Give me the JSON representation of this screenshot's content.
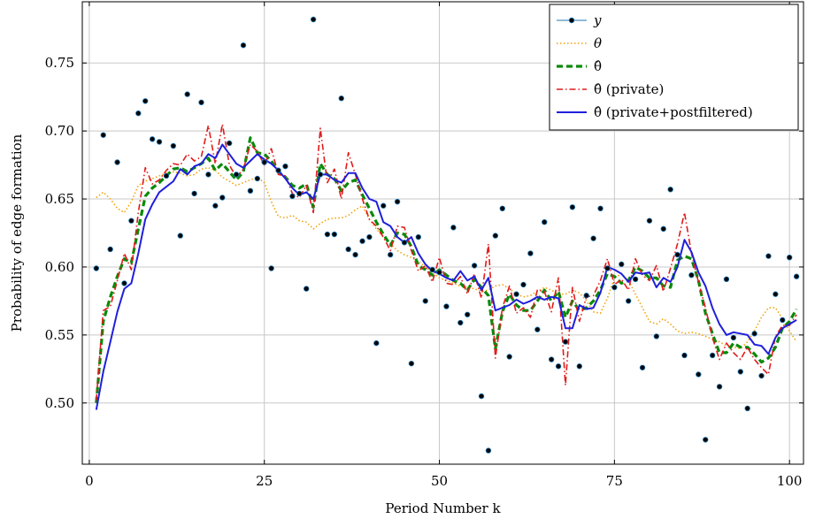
{
  "chart_data": {
    "type": "line",
    "title": "",
    "xlabel": "Period Number k",
    "ylabel": "Probability of edge formation",
    "xlim": [
      -1,
      102
    ],
    "ylim": [
      0.455,
      0.795
    ],
    "xticks": [
      0,
      25,
      50,
      75,
      100
    ],
    "yticks": [
      0.5,
      0.55,
      0.6,
      0.65,
      0.7,
      0.75
    ],
    "ytick_labels": [
      "0.50",
      "0.55",
      "0.60",
      "0.65",
      "0.70",
      "0.75"
    ],
    "grid": true,
    "legend_position": "top-right",
    "x": [
      1,
      2,
      3,
      4,
      5,
      6,
      7,
      8,
      9,
      10,
      11,
      12,
      13,
      14,
      15,
      16,
      17,
      18,
      19,
      20,
      21,
      22,
      23,
      24,
      25,
      26,
      27,
      28,
      29,
      30,
      31,
      32,
      33,
      34,
      35,
      36,
      37,
      38,
      39,
      40,
      41,
      42,
      43,
      44,
      45,
      46,
      47,
      48,
      49,
      50,
      51,
      52,
      53,
      54,
      55,
      56,
      57,
      58,
      59,
      60,
      61,
      62,
      63,
      64,
      65,
      66,
      67,
      68,
      69,
      70,
      71,
      72,
      73,
      74,
      75,
      76,
      77,
      78,
      79,
      80,
      81,
      82,
      83,
      84,
      85,
      86,
      87,
      88,
      89,
      90,
      91,
      92,
      93,
      94,
      95,
      96,
      97,
      98,
      99,
      100,
      101
    ],
    "series": [
      {
        "name": "y",
        "legend_label": "y",
        "color": "#1f77b4",
        "style": "markers",
        "values": [
          0.599,
          0.697,
          0.613,
          0.677,
          0.588,
          0.634,
          0.713,
          0.722,
          0.694,
          0.692,
          0.667,
          0.689,
          0.623,
          0.727,
          0.654,
          0.721,
          0.668,
          0.645,
          0.651,
          0.691,
          0.668,
          0.763,
          0.656,
          0.665,
          0.677,
          0.599,
          0.671,
          0.674,
          0.652,
          0.654,
          0.584,
          0.782,
          0.668,
          0.624,
          0.624,
          0.724,
          0.613,
          0.609,
          0.619,
          0.622,
          0.544,
          0.645,
          0.609,
          0.648,
          0.618,
          0.529,
          0.622,
          0.575,
          0.598,
          0.596,
          0.571,
          0.629,
          0.559,
          0.565,
          0.601,
          0.505,
          0.465,
          0.623,
          0.643,
          0.534,
          0.58,
          0.587,
          0.61,
          0.554,
          0.633,
          0.532,
          0.527,
          0.545,
          0.644,
          0.527,
          0.579,
          0.621,
          0.643,
          0.599,
          0.585,
          0.602,
          0.575,
          0.591,
          0.526,
          0.634,
          0.549,
          0.628,
          0.657,
          0.609,
          0.535,
          0.594,
          0.521,
          0.473,
          0.535,
          0.512,
          0.591,
          0.548,
          0.523,
          0.496,
          0.551,
          0.52,
          0.608,
          0.58,
          0.561,
          0.607,
          0.593
        ]
      },
      {
        "name": "θ",
        "legend_label": "θ",
        "color": "#f0a30a",
        "style": "dotted",
        "values": [
          0.651,
          0.655,
          0.65,
          0.643,
          0.64,
          0.648,
          0.66,
          0.663,
          0.665,
          0.667,
          0.669,
          0.67,
          0.669,
          0.667,
          0.668,
          0.672,
          0.673,
          0.671,
          0.666,
          0.663,
          0.66,
          0.662,
          0.664,
          0.666,
          0.662,
          0.648,
          0.637,
          0.636,
          0.638,
          0.634,
          0.633,
          0.628,
          0.632,
          0.635,
          0.636,
          0.636,
          0.638,
          0.642,
          0.645,
          0.635,
          0.628,
          0.622,
          0.617,
          0.612,
          0.609,
          0.607,
          0.604,
          0.6,
          0.596,
          0.592,
          0.59,
          0.588,
          0.586,
          0.585,
          0.584,
          0.582,
          0.583,
          0.586,
          0.587,
          0.584,
          0.58,
          0.578,
          0.579,
          0.582,
          0.585,
          0.583,
          0.58,
          0.58,
          0.583,
          0.581,
          0.575,
          0.567,
          0.566,
          0.577,
          0.592,
          0.595,
          0.59,
          0.58,
          0.57,
          0.56,
          0.558,
          0.562,
          0.558,
          0.553,
          0.551,
          0.552,
          0.551,
          0.549,
          0.547,
          0.545,
          0.542,
          0.541,
          0.54,
          0.545,
          0.553,
          0.563,
          0.57,
          0.57,
          0.562,
          0.553,
          0.545
        ]
      },
      {
        "name": "θ̂",
        "legend_label": "θ̂",
        "color": "#0a8a0a",
        "style": "dashed",
        "values": [
          0.5,
          0.56,
          0.578,
          0.593,
          0.606,
          0.603,
          0.628,
          0.652,
          0.658,
          0.662,
          0.667,
          0.672,
          0.673,
          0.67,
          0.673,
          0.676,
          0.68,
          0.671,
          0.676,
          0.67,
          0.664,
          0.67,
          0.695,
          0.684,
          0.683,
          0.678,
          0.67,
          0.666,
          0.66,
          0.658,
          0.661,
          0.644,
          0.676,
          0.668,
          0.665,
          0.656,
          0.662,
          0.664,
          0.653,
          0.643,
          0.633,
          0.624,
          0.616,
          0.625,
          0.624,
          0.615,
          0.601,
          0.598,
          0.594,
          0.598,
          0.594,
          0.59,
          0.588,
          0.583,
          0.591,
          0.585,
          0.579,
          0.54,
          0.567,
          0.58,
          0.572,
          0.568,
          0.568,
          0.575,
          0.583,
          0.575,
          0.582,
          0.563,
          0.575,
          0.568,
          0.57,
          0.575,
          0.583,
          0.595,
          0.593,
          0.588,
          0.59,
          0.6,
          0.597,
          0.592,
          0.592,
          0.586,
          0.585,
          0.605,
          0.608,
          0.606,
          0.59,
          0.566,
          0.551,
          0.537,
          0.537,
          0.544,
          0.541,
          0.541,
          0.536,
          0.53,
          0.533,
          0.541,
          0.555,
          0.56,
          0.569
        ]
      },
      {
        "name": "θ̂ (private)",
        "legend_label": "θ̂ (private)",
        "color": "#e01b1b",
        "style": "dashdot",
        "values": [
          0.502,
          0.568,
          0.571,
          0.59,
          0.61,
          0.598,
          0.64,
          0.673,
          0.661,
          0.664,
          0.671,
          0.676,
          0.675,
          0.683,
          0.678,
          0.681,
          0.704,
          0.676,
          0.705,
          0.675,
          0.666,
          0.672,
          0.69,
          0.685,
          0.675,
          0.687,
          0.668,
          0.667,
          0.654,
          0.651,
          0.66,
          0.64,
          0.702,
          0.662,
          0.672,
          0.65,
          0.684,
          0.668,
          0.65,
          0.635,
          0.63,
          0.622,
          0.612,
          0.63,
          0.629,
          0.612,
          0.597,
          0.601,
          0.589,
          0.607,
          0.588,
          0.587,
          0.593,
          0.58,
          0.595,
          0.577,
          0.617,
          0.533,
          0.57,
          0.586,
          0.566,
          0.57,
          0.563,
          0.583,
          0.582,
          0.567,
          0.592,
          0.513,
          0.585,
          0.56,
          0.578,
          0.579,
          0.59,
          0.606,
          0.587,
          0.591,
          0.583,
          0.606,
          0.594,
          0.59,
          0.601,
          0.582,
          0.599,
          0.617,
          0.64,
          0.61,
          0.589,
          0.57,
          0.548,
          0.532,
          0.544,
          0.537,
          0.532,
          0.541,
          0.532,
          0.526,
          0.521,
          0.549,
          0.557,
          0.557,
          0.565
        ]
      },
      {
        "name": "θ̂ (private+postfiltered)",
        "legend_label": "θ̂ (private+postfiltered)",
        "color": "#1f1fdc",
        "style": "solid",
        "values": [
          0.495,
          0.523,
          0.545,
          0.567,
          0.584,
          0.588,
          0.61,
          0.635,
          0.646,
          0.655,
          0.659,
          0.663,
          0.672,
          0.668,
          0.674,
          0.676,
          0.683,
          0.68,
          0.69,
          0.683,
          0.676,
          0.673,
          0.678,
          0.683,
          0.679,
          0.676,
          0.671,
          0.665,
          0.658,
          0.653,
          0.655,
          0.65,
          0.668,
          0.668,
          0.664,
          0.662,
          0.669,
          0.669,
          0.658,
          0.65,
          0.648,
          0.633,
          0.63,
          0.622,
          0.618,
          0.622,
          0.61,
          0.602,
          0.597,
          0.595,
          0.592,
          0.59,
          0.597,
          0.59,
          0.593,
          0.583,
          0.592,
          0.568,
          0.57,
          0.572,
          0.576,
          0.573,
          0.575,
          0.578,
          0.576,
          0.578,
          0.577,
          0.555,
          0.555,
          0.572,
          0.569,
          0.57,
          0.581,
          0.6,
          0.598,
          0.595,
          0.589,
          0.596,
          0.595,
          0.596,
          0.585,
          0.592,
          0.589,
          0.6,
          0.62,
          0.611,
          0.596,
          0.586,
          0.57,
          0.558,
          0.55,
          0.552,
          0.551,
          0.55,
          0.543,
          0.542,
          0.536,
          0.548,
          0.555,
          0.558,
          0.561
        ]
      }
    ]
  }
}
